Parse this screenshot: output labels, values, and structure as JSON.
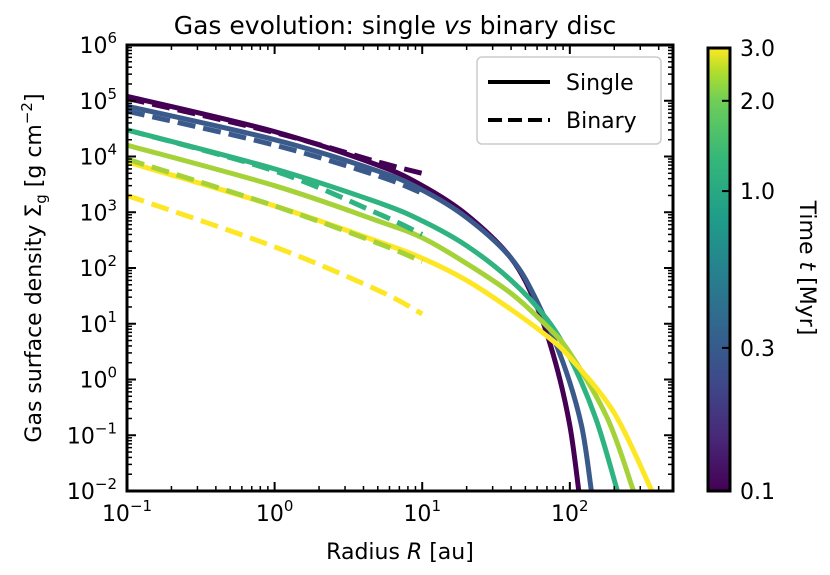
{
  "chart_data": {
    "type": "line",
    "title_prefix": "Gas evolution: single ",
    "title_italic": "vs",
    "title_suffix": " binary disc",
    "xlabel_prefix": "Radius ",
    "xlabel_var": "R",
    "xlabel_unit": " [au]",
    "ylabel_prefix": "Gas surface density ",
    "ylabel_symbol": "Σ",
    "ylabel_sub": "g",
    "ylabel_unit_open": " [g cm",
    "ylabel_unit_exp": "−2",
    "ylabel_unit_close": "]",
    "xscale": "log",
    "yscale": "log",
    "xlim": [
      0.1,
      500
    ],
    "ylim": [
      0.01,
      1000000
    ],
    "x_ticks": [
      {
        "value": 0.1,
        "base": "10",
        "exp": "−1"
      },
      {
        "value": 1,
        "base": "10",
        "exp": "0"
      },
      {
        "value": 10,
        "base": "10",
        "exp": "1"
      },
      {
        "value": 100,
        "base": "10",
        "exp": "2"
      }
    ],
    "y_ticks": [
      {
        "value": 0.01,
        "base": "10",
        "exp": "−2"
      },
      {
        "value": 0.1,
        "base": "10",
        "exp": "−1"
      },
      {
        "value": 1,
        "base": "10",
        "exp": "0"
      },
      {
        "value": 10,
        "base": "10",
        "exp": "1"
      },
      {
        "value": 100,
        "base": "10",
        "exp": "2"
      },
      {
        "value": 1000,
        "base": "10",
        "exp": "3"
      },
      {
        "value": 10000,
        "base": "10",
        "exp": "4"
      },
      {
        "value": 100000,
        "base": "10",
        "exp": "5"
      },
      {
        "value": 1000000,
        "base": "10",
        "exp": "6"
      }
    ],
    "grid": false,
    "legend_position": "top-right",
    "legend": [
      {
        "label": "Single",
        "style": "solid"
      },
      {
        "label": "Binary",
        "style": "dashed"
      }
    ],
    "colorbar": {
      "label_prefix": "Time ",
      "label_var": "t",
      "label_unit": " [Myr]",
      "scale": "log",
      "range": [
        0.1,
        3.0
      ],
      "ticks": [
        {
          "value": 0.1,
          "label": "0.1"
        },
        {
          "value": 0.3,
          "label": "0.3"
        },
        {
          "value": 1.0,
          "label": "1.0"
        },
        {
          "value": 2.0,
          "label": "2.0"
        },
        {
          "value": 3.0,
          "label": "3.0"
        }
      ]
    },
    "series": [
      {
        "style": "solid",
        "time": 0.1,
        "color": "#440154",
        "points": [
          [
            0.1,
            120000
          ],
          [
            1,
            28000
          ],
          [
            5,
            7000
          ],
          [
            10,
            3000
          ],
          [
            20,
            900
          ],
          [
            40,
            150
          ],
          [
            60,
            20
          ],
          [
            80,
            2
          ],
          [
            100,
            0.15
          ],
          [
            115,
            0.01
          ]
        ]
      },
      {
        "style": "solid",
        "time": 0.3,
        "color": "#3b5a8c",
        "points": [
          [
            0.1,
            80000
          ],
          [
            1,
            20000
          ],
          [
            5,
            5500
          ],
          [
            10,
            2500
          ],
          [
            20,
            800
          ],
          [
            40,
            150
          ],
          [
            60,
            25
          ],
          [
            90,
            2
          ],
          [
            120,
            0.15
          ],
          [
            140,
            0.01
          ]
        ]
      },
      {
        "style": "solid",
        "time": 0.9,
        "color": "#2fb381",
        "points": [
          [
            0.1,
            30000
          ],
          [
            1,
            6000
          ],
          [
            5,
            1500
          ],
          [
            10,
            700
          ],
          [
            20,
            250
          ],
          [
            40,
            60
          ],
          [
            70,
            12
          ],
          [
            100,
            2.5
          ],
          [
            150,
            0.2
          ],
          [
            210,
            0.01
          ]
        ]
      },
      {
        "style": "solid",
        "time": 1.8,
        "color": "#a5d238",
        "points": [
          [
            0.1,
            16000
          ],
          [
            1,
            3000
          ],
          [
            5,
            700
          ],
          [
            10,
            350
          ],
          [
            20,
            120
          ],
          [
            40,
            35
          ],
          [
            70,
            9
          ],
          [
            100,
            3
          ],
          [
            180,
            0.2
          ],
          [
            270,
            0.01
          ]
        ]
      },
      {
        "style": "solid",
        "time": 3.0,
        "color": "#fde725",
        "points": [
          [
            0.1,
            8000
          ],
          [
            1,
            1300
          ],
          [
            5,
            300
          ],
          [
            10,
            150
          ],
          [
            20,
            60
          ],
          [
            40,
            18
          ],
          [
            70,
            6
          ],
          [
            100,
            2.5
          ],
          [
            200,
            0.25
          ],
          [
            360,
            0.01
          ]
        ]
      },
      {
        "style": "dashed",
        "time": 0.1,
        "color": "#440154",
        "points": [
          [
            0.1,
            110000
          ],
          [
            1,
            27000
          ],
          [
            5,
            8000
          ],
          [
            10,
            5000
          ]
        ]
      },
      {
        "style": "dashed",
        "time": 0.3,
        "color": "#3b5a8c",
        "points": [
          [
            0.1,
            65000
          ],
          [
            1,
            16000
          ],
          [
            5,
            4500
          ],
          [
            10,
            2200
          ]
        ]
      },
      {
        "style": "dashed",
        "time": 0.9,
        "color": "#2fb381",
        "points": [
          [
            0.1,
            30000
          ],
          [
            1,
            5500
          ],
          [
            5,
            950
          ],
          [
            10,
            400
          ]
        ]
      },
      {
        "style": "dashed",
        "time": 1.8,
        "color": "#a5d238",
        "points": [
          [
            0.1,
            9000
          ],
          [
            1,
            1300
          ],
          [
            5,
            280
          ],
          [
            10,
            130
          ]
        ]
      },
      {
        "style": "dashed",
        "time": 3.0,
        "color": "#fde725",
        "points": [
          [
            0.1,
            2000
          ],
          [
            1,
            240
          ],
          [
            5,
            40
          ],
          [
            10,
            15
          ]
        ]
      }
    ]
  }
}
